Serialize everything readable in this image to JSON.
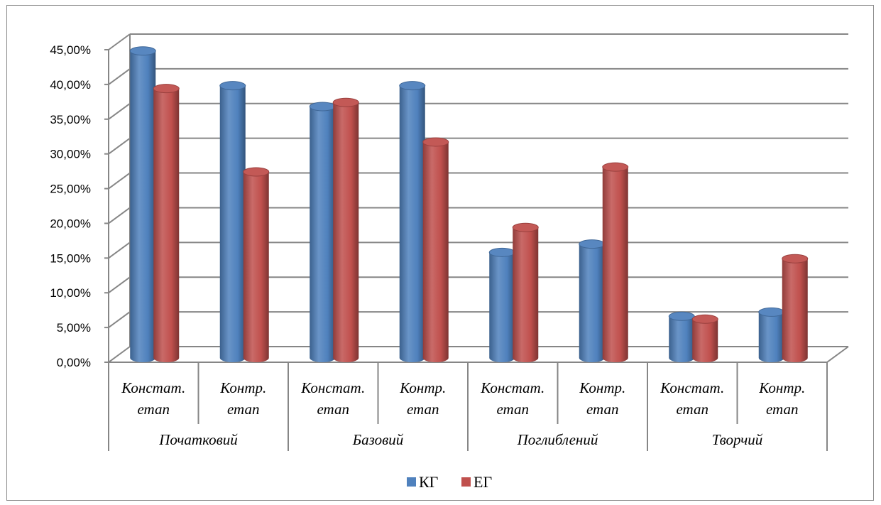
{
  "chart_data": {
    "type": "bar",
    "title": "",
    "xlabel": "",
    "ylabel": "",
    "ylim": [
      0,
      0.45
    ],
    "y_ticks": [
      "0,00%",
      "5,00%",
      "10,00%",
      "15,00%",
      "20,00%",
      "25,00%",
      "30,00%",
      "35,00%",
      "40,00%",
      "45,00%"
    ],
    "grid": true,
    "legend": "bottom",
    "groups": [
      {
        "label": "Початковий",
        "categories": [
          [
            "Констат.",
            "етап"
          ],
          [
            "Контр.",
            "етап"
          ]
        ]
      },
      {
        "label": "Базовий",
        "categories": [
          [
            "Констат.",
            "етап"
          ],
          [
            "Контр.",
            "етап"
          ]
        ]
      },
      {
        "label": "Поглиблений",
        "categories": [
          [
            "Констат.",
            "етап"
          ],
          [
            "Контр.",
            "етап"
          ]
        ]
      },
      {
        "label": "Творчий",
        "categories": [
          [
            "Констат.",
            "етап"
          ],
          [
            "Контр.",
            "етап"
          ]
        ]
      }
    ],
    "series": [
      {
        "name": "КГ",
        "color": "#4f81bd",
        "values": [
          0.44,
          0.39,
          0.36,
          0.39,
          0.15,
          0.162,
          0.058,
          0.064
        ]
      },
      {
        "name": "ЕГ",
        "color": "#c0504d",
        "values": [
          0.39,
          0.27,
          0.37,
          0.313,
          0.19,
          0.277,
          0.058,
          0.145
        ]
      }
    ]
  }
}
